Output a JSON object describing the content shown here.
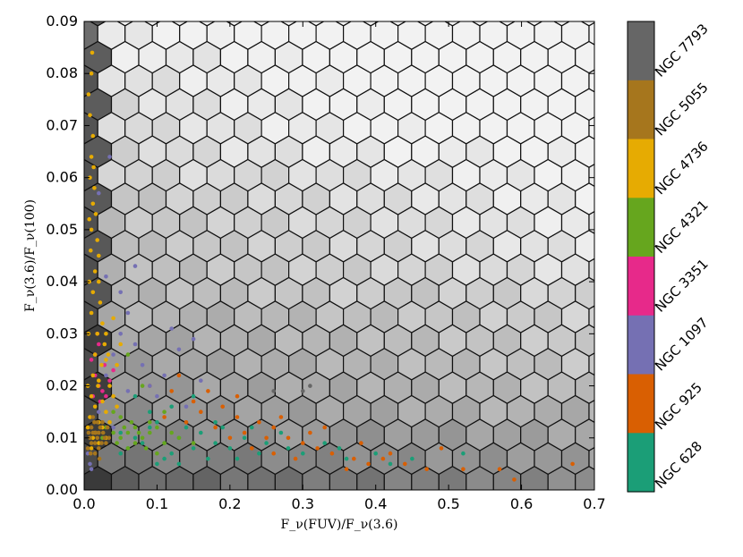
{
  "chart_data": {
    "type": "scatter",
    "background": "hexbin-grayscale",
    "xlabel": "F_ν(FUV)/F_ν(3.6)",
    "ylabel": "F_ν(3.6)/F_ν(100)",
    "xlim": [
      0.0,
      0.7
    ],
    "ylim": [
      0.0,
      0.09
    ],
    "x_ticks": [
      "0.0",
      "0.1",
      "0.2",
      "0.3",
      "0.4",
      "0.5",
      "0.6",
      "0.7"
    ],
    "y_ticks": [
      "0.00",
      "0.01",
      "0.02",
      "0.03",
      "0.04",
      "0.05",
      "0.06",
      "0.07",
      "0.08",
      "0.09"
    ],
    "grid": false,
    "colorbar": {
      "position": "right",
      "entries": [
        {
          "name": "NGC 7793",
          "color": "#666666"
        },
        {
          "name": "NGC 5055",
          "color": "#a6761d"
        },
        {
          "name": "NGC 4736",
          "color": "#e6ab02"
        },
        {
          "name": "NGC 4321",
          "color": "#66a61e"
        },
        {
          "name": "NGC 3351",
          "color": "#e7298a"
        },
        {
          "name": "NGC 1097",
          "color": "#7570b3"
        },
        {
          "name": "NGC 925",
          "color": "#d95f02"
        },
        {
          "name": "NGC 628",
          "color": "#1b9e77"
        }
      ]
    },
    "series": [
      {
        "name": "NGC 628",
        "color": "#1b9e77",
        "points": [
          [
            0.05,
            0.011
          ],
          [
            0.07,
            0.01
          ],
          [
            0.09,
            0.012
          ],
          [
            0.11,
            0.009
          ],
          [
            0.13,
            0.01
          ],
          [
            0.15,
            0.008
          ],
          [
            0.12,
            0.007
          ],
          [
            0.16,
            0.011
          ],
          [
            0.18,
            0.009
          ],
          [
            0.2,
            0.008
          ],
          [
            0.22,
            0.01
          ],
          [
            0.24,
            0.007
          ],
          [
            0.1,
            0.013
          ],
          [
            0.14,
            0.012
          ],
          [
            0.08,
            0.009
          ],
          [
            0.06,
            0.008
          ],
          [
            0.17,
            0.006
          ],
          [
            0.19,
            0.012
          ],
          [
            0.21,
            0.006
          ],
          [
            0.25,
            0.009
          ],
          [
            0.28,
            0.008
          ],
          [
            0.3,
            0.007
          ],
          [
            0.33,
            0.009
          ],
          [
            0.36,
            0.006
          ],
          [
            0.4,
            0.007
          ],
          [
            0.45,
            0.006
          ],
          [
            0.52,
            0.007
          ],
          [
            0.12,
            0.016
          ],
          [
            0.09,
            0.015
          ],
          [
            0.15,
            0.018
          ],
          [
            0.07,
            0.018
          ],
          [
            0.11,
            0.006
          ],
          [
            0.13,
            0.005
          ],
          [
            0.23,
            0.012
          ],
          [
            0.42,
            0.005
          ],
          [
            0.05,
            0.007
          ],
          [
            0.27,
            0.011
          ],
          [
            0.18,
            0.013
          ],
          [
            0.1,
            0.005
          ],
          [
            0.35,
            0.008
          ]
        ]
      },
      {
        "name": "NGC 925",
        "color": "#d95f02",
        "points": [
          [
            0.09,
            0.02
          ],
          [
            0.12,
            0.019
          ],
          [
            0.15,
            0.017
          ],
          [
            0.19,
            0.016
          ],
          [
            0.21,
            0.014
          ],
          [
            0.24,
            0.013
          ],
          [
            0.26,
            0.012
          ],
          [
            0.28,
            0.01
          ],
          [
            0.3,
            0.009
          ],
          [
            0.32,
            0.008
          ],
          [
            0.34,
            0.007
          ],
          [
            0.37,
            0.006
          ],
          [
            0.41,
            0.006
          ],
          [
            0.44,
            0.005
          ],
          [
            0.47,
            0.004
          ],
          [
            0.52,
            0.004
          ],
          [
            0.57,
            0.004
          ],
          [
            0.59,
            0.002
          ],
          [
            0.67,
            0.005
          ],
          [
            0.18,
            0.012
          ],
          [
            0.22,
            0.011
          ],
          [
            0.25,
            0.01
          ],
          [
            0.17,
            0.019
          ],
          [
            0.2,
            0.01
          ],
          [
            0.14,
            0.013
          ],
          [
            0.27,
            0.014
          ],
          [
            0.23,
            0.008
          ],
          [
            0.33,
            0.012
          ],
          [
            0.38,
            0.009
          ],
          [
            0.29,
            0.006
          ],
          [
            0.16,
            0.015
          ],
          [
            0.13,
            0.022
          ],
          [
            0.42,
            0.007
          ],
          [
            0.49,
            0.008
          ],
          [
            0.36,
            0.004
          ],
          [
            0.11,
            0.014
          ],
          [
            0.31,
            0.011
          ],
          [
            0.26,
            0.007
          ],
          [
            0.21,
            0.018
          ],
          [
            0.39,
            0.005
          ]
        ]
      },
      {
        "name": "NGC 1097",
        "color": "#7570b3",
        "points": [
          [
            0.005,
            0.007
          ],
          [
            0.008,
            0.005
          ],
          [
            0.01,
            0.004
          ],
          [
            0.02,
            0.015
          ],
          [
            0.03,
            0.022
          ],
          [
            0.04,
            0.026
          ],
          [
            0.05,
            0.03
          ],
          [
            0.06,
            0.034
          ],
          [
            0.07,
            0.028
          ],
          [
            0.08,
            0.024
          ],
          [
            0.09,
            0.02
          ],
          [
            0.1,
            0.018
          ],
          [
            0.11,
            0.022
          ],
          [
            0.13,
            0.027
          ],
          [
            0.15,
            0.029
          ],
          [
            0.12,
            0.031
          ],
          [
            0.16,
            0.021
          ],
          [
            0.05,
            0.038
          ],
          [
            0.03,
            0.041
          ],
          [
            0.02,
            0.057
          ],
          [
            0.035,
            0.064
          ],
          [
            0.06,
            0.019
          ],
          [
            0.14,
            0.016
          ],
          [
            0.04,
            0.012
          ],
          [
            0.07,
            0.043
          ]
        ]
      },
      {
        "name": "NGC 3351",
        "color": "#e7298a",
        "points": [
          [
            0.01,
            0.025
          ],
          [
            0.015,
            0.022
          ],
          [
            0.02,
            0.02
          ],
          [
            0.025,
            0.019
          ],
          [
            0.03,
            0.018
          ],
          [
            0.035,
            0.021
          ],
          [
            0.02,
            0.028
          ],
          [
            0.018,
            0.03
          ],
          [
            0.028,
            0.024
          ],
          [
            0.012,
            0.018
          ],
          [
            0.022,
            0.017
          ],
          [
            0.04,
            0.023
          ],
          [
            0.015,
            0.026
          ]
        ]
      },
      {
        "name": "NGC 4321",
        "color": "#66a61e",
        "points": [
          [
            0.03,
            0.012
          ],
          [
            0.04,
            0.011
          ],
          [
            0.05,
            0.01
          ],
          [
            0.06,
            0.011
          ],
          [
            0.07,
            0.009
          ],
          [
            0.08,
            0.01
          ],
          [
            0.09,
            0.011
          ],
          [
            0.1,
            0.012
          ],
          [
            0.11,
            0.009
          ],
          [
            0.12,
            0.011
          ],
          [
            0.13,
            0.01
          ],
          [
            0.035,
            0.013
          ],
          [
            0.045,
            0.009
          ],
          [
            0.055,
            0.012
          ],
          [
            0.065,
            0.013
          ],
          [
            0.075,
            0.011
          ],
          [
            0.085,
            0.008
          ],
          [
            0.025,
            0.01
          ],
          [
            0.05,
            0.014
          ],
          [
            0.07,
            0.012
          ],
          [
            0.06,
            0.008
          ],
          [
            0.04,
            0.015
          ],
          [
            0.09,
            0.013
          ],
          [
            0.15,
            0.009
          ],
          [
            0.1,
            0.007
          ],
          [
            0.08,
            0.02
          ],
          [
            0.06,
            0.026
          ],
          [
            0.11,
            0.015
          ]
        ]
      },
      {
        "name": "NGC 4736",
        "color": "#e6ab02",
        "points": [
          [
            0.005,
            0.012
          ],
          [
            0.008,
            0.014
          ],
          [
            0.01,
            0.018
          ],
          [
            0.012,
            0.022
          ],
          [
            0.015,
            0.026
          ],
          [
            0.018,
            0.03
          ],
          [
            0.01,
            0.034
          ],
          [
            0.012,
            0.038
          ],
          [
            0.015,
            0.042
          ],
          [
            0.02,
            0.045
          ],
          [
            0.01,
            0.05
          ],
          [
            0.012,
            0.055
          ],
          [
            0.008,
            0.06
          ],
          [
            0.01,
            0.064
          ],
          [
            0.012,
            0.068
          ],
          [
            0.008,
            0.072
          ],
          [
            0.01,
            0.08
          ],
          [
            0.011,
            0.084
          ],
          [
            0.006,
            0.076
          ],
          [
            0.014,
            0.058
          ],
          [
            0.016,
            0.053
          ],
          [
            0.018,
            0.048
          ],
          [
            0.02,
            0.04
          ],
          [
            0.022,
            0.036
          ],
          [
            0.025,
            0.032
          ],
          [
            0.028,
            0.028
          ],
          [
            0.03,
            0.025
          ],
          [
            0.02,
            0.021
          ],
          [
            0.025,
            0.017
          ],
          [
            0.03,
            0.015
          ],
          [
            0.035,
            0.013
          ],
          [
            0.015,
            0.011
          ],
          [
            0.02,
            0.009
          ],
          [
            0.025,
            0.012
          ],
          [
            0.03,
            0.01
          ],
          [
            0.01,
            0.008
          ],
          [
            0.035,
            0.02
          ],
          [
            0.04,
            0.018
          ],
          [
            0.045,
            0.016
          ],
          [
            0.02,
            0.013
          ],
          [
            0.015,
            0.016
          ],
          [
            0.012,
            0.01
          ],
          [
            0.005,
            0.02
          ],
          [
            0.006,
            0.03
          ],
          [
            0.007,
            0.04
          ],
          [
            0.03,
            0.03
          ],
          [
            0.033,
            0.026
          ],
          [
            0.024,
            0.024
          ],
          [
            0.019,
            0.02
          ],
          [
            0.009,
            0.046
          ],
          [
            0.013,
            0.062
          ],
          [
            0.007,
            0.052
          ],
          [
            0.04,
            0.033
          ],
          [
            0.05,
            0.028
          ],
          [
            0.045,
            0.024
          ]
        ]
      },
      {
        "name": "NGC 5055",
        "color": "#a6761d",
        "points": [
          [
            0.005,
            0.008
          ],
          [
            0.008,
            0.01
          ],
          [
            0.01,
            0.012
          ],
          [
            0.012,
            0.011
          ],
          [
            0.015,
            0.009
          ],
          [
            0.018,
            0.01
          ],
          [
            0.02,
            0.011
          ],
          [
            0.022,
            0.012
          ],
          [
            0.025,
            0.013
          ],
          [
            0.028,
            0.01
          ],
          [
            0.03,
            0.009
          ],
          [
            0.01,
            0.009
          ],
          [
            0.014,
            0.013
          ],
          [
            0.016,
            0.011
          ],
          [
            0.006,
            0.011
          ],
          [
            0.02,
            0.008
          ],
          [
            0.024,
            0.009
          ],
          [
            0.012,
            0.014
          ],
          [
            0.018,
            0.013
          ],
          [
            0.026,
            0.011
          ],
          [
            0.032,
            0.012
          ],
          [
            0.034,
            0.01
          ],
          [
            0.009,
            0.007
          ],
          [
            0.015,
            0.007
          ],
          [
            0.021,
            0.006
          ]
        ]
      },
      {
        "name": "NGC 7793",
        "color": "#666666",
        "points": [
          [
            0.26,
            0.019
          ],
          [
            0.3,
            0.019
          ],
          [
            0.31,
            0.02
          ]
        ]
      }
    ]
  }
}
